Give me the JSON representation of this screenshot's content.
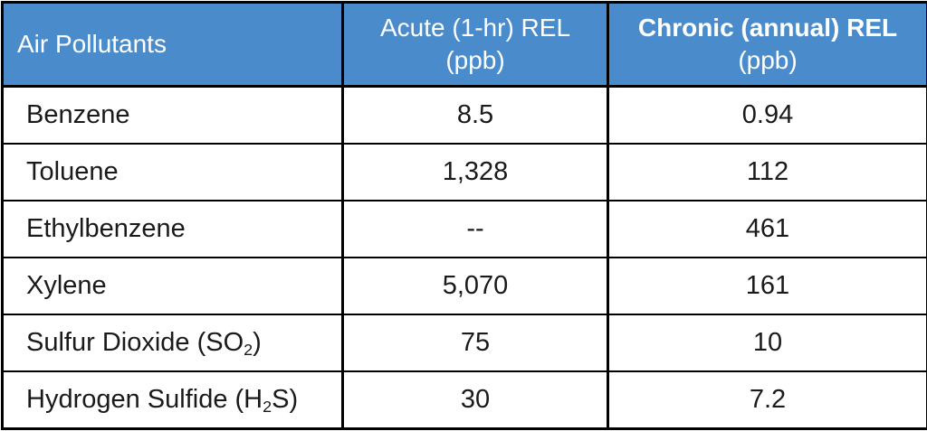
{
  "colors": {
    "header_bg": "#4A8CCB",
    "header_text": "#FFFFFF",
    "border": "#000000",
    "body_text": "#1A1A1A"
  },
  "table": {
    "header": {
      "col1": {
        "label": "Air Pollutants"
      },
      "col2": {
        "line1": "Acute (1-hr) REL",
        "line2": "(ppb)"
      },
      "col3": {
        "line1": "Chronic (annual) REL",
        "line2": "(ppb)"
      }
    },
    "rows": [
      {
        "name_pre": "Benzene",
        "name_sub": "",
        "name_post": "",
        "acute": "8.5",
        "chronic": "0.94"
      },
      {
        "name_pre": "Toluene",
        "name_sub": "",
        "name_post": "",
        "acute": "1,328",
        "chronic": "112"
      },
      {
        "name_pre": "Ethylbenzene",
        "name_sub": "",
        "name_post": "",
        "acute": "--",
        "chronic": "461"
      },
      {
        "name_pre": "Xylene",
        "name_sub": "",
        "name_post": "",
        "acute": "5,070",
        "chronic": "161"
      },
      {
        "name_pre": "Sulfur Dioxide (SO",
        "name_sub": "2",
        "name_post": ")",
        "acute": "75",
        "chronic": "10"
      },
      {
        "name_pre": "Hydrogen Sulfide (H",
        "name_sub": "2",
        "name_post": "S)",
        "acute": "30",
        "chronic": "7.2"
      }
    ]
  }
}
